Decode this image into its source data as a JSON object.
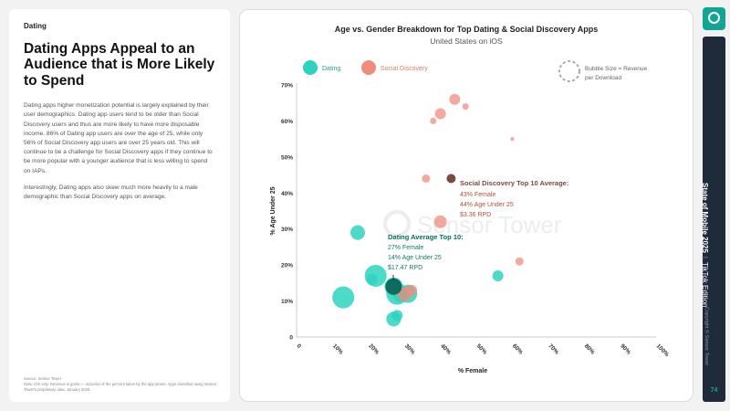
{
  "left": {
    "category": "Dating",
    "headline": "Dating Apps Appeal to an Audience that is More Likely to Spend",
    "paragraph1": "Dating apps higher monetization potential is largely explained by their user demographics. Dating app users tend to be older than Social Discovery users and thus are more likely to have more disposable income. 86% of Dating app users are over the age of 25, while only 56% of Social Discovery app users are over 25 years old. This will continue to be a challenge for Social Discovery apps if they continue to be more popular with a younger audience that is less willing to spend on IAPs.",
    "paragraph2": "Interestingly, Dating apps also skew much more heavily to a male demographic than Social Discovery apps on average.",
    "source_line1": "Source: Sensor Tower",
    "source_line2": "Note: iOS only. Revenue is gross — inclusive of the percent taken by the app stores. Apps classified using Sensor Tower's proprietary data. January 2025."
  },
  "chart": {
    "title": "Age vs. Gender Breakdown for Top Dating & Social Discovery Apps",
    "subtitle": "United States on iOS",
    "legend_dating": "Dating",
    "legend_social": "Social Discovery",
    "legend_size_line1": "Bubble Size = Revenue",
    "legend_size_line2": "per Download",
    "watermark": "Sensor Tower",
    "annotation_social_title": "Social Discovery Top 10 Average:",
    "annotation_social_l1": "43% Female",
    "annotation_social_l2": "44% Age Under 25",
    "annotation_social_l3": "$3.36 RPD",
    "annotation_dating_title": "Dating Average Top 10:",
    "annotation_dating_l1": "27% Female",
    "annotation_dating_l2": "14% Age Under 25",
    "annotation_dating_l3": "$17.47 RPD"
  },
  "chart_data": {
    "type": "scatter",
    "xlabel": "% Female",
    "ylabel": "% Age Under 25",
    "xlim": [
      0,
      100
    ],
    "ylim": [
      0,
      70
    ],
    "x_ticks": [
      "0",
      "10%",
      "20%",
      "30%",
      "40%",
      "50%",
      "60%",
      "70%",
      "80%",
      "90%",
      "100%"
    ],
    "y_ticks": [
      "0",
      "10%",
      "20%",
      "30%",
      "40%",
      "50%",
      "60%",
      "70%"
    ],
    "colors": {
      "dating": "#2ed3c0",
      "social": "#f08c7c",
      "dating_avg": "#0e6b5e",
      "social_avg": "#7a4a3e"
    },
    "series": [
      {
        "name": "Dating",
        "points": [
          {
            "x": 13,
            "y": 11,
            "r": 12
          },
          {
            "x": 17,
            "y": 29,
            "r": 8
          },
          {
            "x": 21,
            "y": 16,
            "r": 6
          },
          {
            "x": 22,
            "y": 17,
            "r": 12
          },
          {
            "x": 27,
            "y": 14,
            "r": 10
          },
          {
            "x": 28,
            "y": 12,
            "r": 12
          },
          {
            "x": 29,
            "y": 12,
            "r": 9
          },
          {
            "x": 31,
            "y": 12,
            "r": 10
          },
          {
            "x": 27,
            "y": 5,
            "r": 8
          },
          {
            "x": 28,
            "y": 6,
            "r": 6
          },
          {
            "x": 56,
            "y": 17,
            "r": 6
          }
        ]
      },
      {
        "name": "Social Discovery",
        "points": [
          {
            "x": 44,
            "y": 66,
            "r": 6
          },
          {
            "x": 47,
            "y": 64,
            "r": 3.5
          },
          {
            "x": 40,
            "y": 62,
            "r": 6
          },
          {
            "x": 38,
            "y": 60,
            "r": 3.5
          },
          {
            "x": 60,
            "y": 55,
            "r": 2
          },
          {
            "x": 36,
            "y": 44,
            "r": 4.5
          },
          {
            "x": 40,
            "y": 32,
            "r": 7
          },
          {
            "x": 62,
            "y": 21,
            "r": 4.5
          },
          {
            "x": 30,
            "y": 12,
            "r": 8
          },
          {
            "x": 32,
            "y": 13,
            "r": 6
          }
        ]
      }
    ],
    "averages": [
      {
        "name": "Dating Average Top 10",
        "x": 27,
        "y": 14
      },
      {
        "name": "Social Discovery Top 10 Average",
        "x": 43,
        "y": 44
      }
    ]
  },
  "rail": {
    "title_bold": "State of Mobile 2025",
    "title_edition": "TikTok Edition",
    "copyright": "Copyright © Sensor Tower",
    "page_number": "74"
  }
}
